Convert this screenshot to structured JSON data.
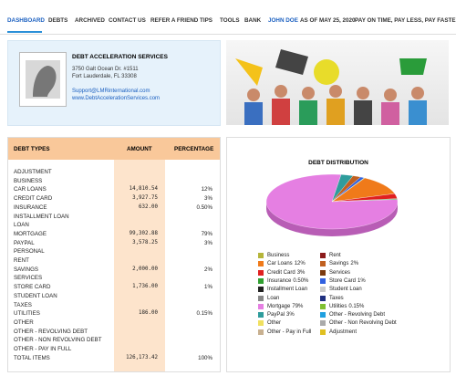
{
  "nav": {
    "items": [
      "DASHBOARD",
      "DEBTS",
      "ARCHIVED",
      "CONTACT US",
      "REFER A FRIEND",
      "TIPS",
      "TOOLS",
      "BANK"
    ],
    "user": "JOHN DOE",
    "date": "AS OF MAY 25, 2020",
    "slogan": "PAY ON TIME, PAY LESS, PAY FASTER®"
  },
  "company": {
    "name": "DEBT ACCELERATION SERVICES",
    "address": [
      "3750 Galt Ocean Dr. #1511",
      "Fort Lauderdale, FL 33308"
    ],
    "email": "Support@LMRinternational.com",
    "website": "www.DebtAccelerationServices.com"
  },
  "table": {
    "headers": [
      "DEBT TYPES",
      "AMOUNT",
      "PERCENTAGE"
    ],
    "rows": [
      {
        "name": "ADJUSTMENT"
      },
      {
        "name": "BUSINESS"
      },
      {
        "name": "CAR LOANS",
        "amount": "14,810.54",
        "percent": "12%"
      },
      {
        "name": "CREDIT CARD",
        "amount": "3,927.75",
        "percent": "3%"
      },
      {
        "name": "INSURANCE",
        "amount": "632.00",
        "percent": "0.50%"
      },
      {
        "name": "INSTALLMENT LOAN"
      },
      {
        "name": "LOAN"
      },
      {
        "name": "MORTGAGE",
        "amount": "99,302.88",
        "percent": "79%"
      },
      {
        "name": "PAYPAL",
        "amount": "3,578.25",
        "percent": "3%"
      },
      {
        "name": "PERSONAL"
      },
      {
        "name": "RENT"
      },
      {
        "name": "SAVINGS",
        "amount": "2,000.00",
        "percent": "2%"
      },
      {
        "name": "SERVICES"
      },
      {
        "name": "STORE CARD",
        "amount": "1,736.00",
        "percent": "1%"
      },
      {
        "name": "STUDENT LOAN"
      },
      {
        "name": "TAXES"
      },
      {
        "name": "UTILITIES",
        "amount": "186.00",
        "percent": "0.15%"
      },
      {
        "name": "OTHER"
      },
      {
        "name": "OTHER - REVOLVING DEBT"
      },
      {
        "name": "OTHER - NON REVOLVING DEBT"
      },
      {
        "name": "OTHER - PAY IN FULL"
      },
      {
        "name": "TOTAL ITEMS",
        "amount": "126,173.42",
        "percent": "100%"
      }
    ]
  },
  "chart_data": {
    "type": "pie",
    "title": "DEBT DISTRIBUTION",
    "categories": [
      "Business",
      "Car Loans",
      "Credit Card",
      "Insurance",
      "Installment Loan",
      "Loan",
      "Mortgage",
      "PayPal",
      "Other",
      "Other - Pay in Full",
      "Rent",
      "Savings",
      "Services",
      "Store Card",
      "Student Loan",
      "Taxes",
      "Utilities",
      "Other - Revolving Debt",
      "Other - Non Revolving Debt",
      "Adjustment"
    ],
    "values": [
      null,
      12,
      3,
      0.5,
      null,
      null,
      79,
      3,
      null,
      null,
      null,
      2,
      null,
      1,
      null,
      null,
      0.15,
      null,
      null,
      null
    ],
    "value_labels": [
      null,
      "12%",
      "3%",
      "0.50%",
      null,
      null,
      "79%",
      "3%",
      null,
      null,
      null,
      "2%",
      null,
      "1%",
      null,
      null,
      "0.15%",
      null,
      null,
      null
    ],
    "colors": [
      "#b5b53a",
      "#f07a1a",
      "#e02020",
      "#30a030",
      "#222222",
      "#888888",
      "#e57fe2",
      "#2e9c9c",
      "#f0e060",
      "#c8b090",
      "#8b1a1a",
      "#c06020",
      "#7a3a10",
      "#3060e0",
      "#cccccc",
      "#203080",
      "#80c030",
      "#20a0e0",
      "#aaaaaa",
      "#e0c020"
    ]
  }
}
